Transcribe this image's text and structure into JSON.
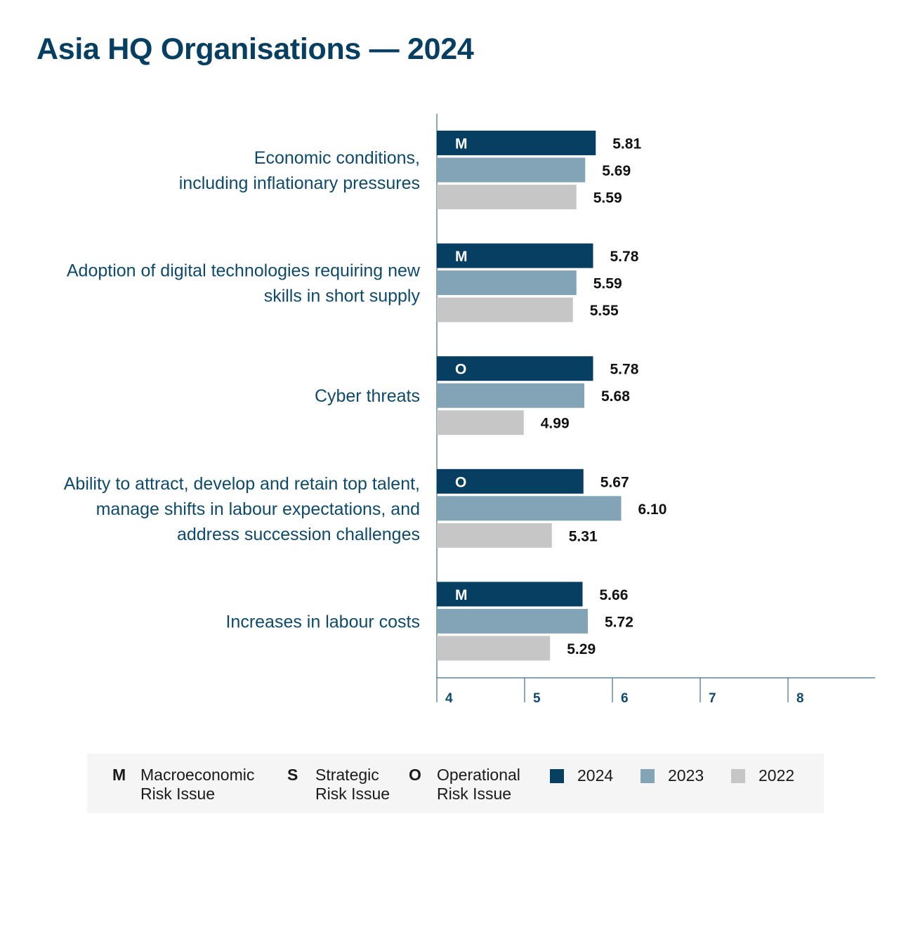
{
  "title": "Asia HQ Organisations — 2024",
  "colors": {
    "2024": "#073f63",
    "2023": "#83a3b6",
    "2022": "#c6c6c6",
    "label": "#0d4a6b",
    "axis": "#3f6f88"
  },
  "chart_data": {
    "type": "bar",
    "orientation": "horizontal",
    "title": "Asia HQ Organisations — 2024",
    "xlim": [
      4,
      9
    ],
    "xticks": [
      4,
      5,
      6,
      7,
      8
    ],
    "categories": [
      [
        "Economic conditions,",
        "including inflationary pressures"
      ],
      [
        "Adoption of digital technologies requiring new",
        "skills in short supply"
      ],
      [
        "Cyber threats"
      ],
      [
        "Ability to attract, develop and retain top talent,",
        "manage shifts in labour expectations, and",
        "address succession challenges"
      ],
      [
        "Increases in labour costs"
      ]
    ],
    "risk_codes": [
      "M",
      "M",
      "O",
      "O",
      "M"
    ],
    "series": [
      {
        "name": "2024",
        "values": [
          5.81,
          5.78,
          5.78,
          5.67,
          5.66
        ],
        "labels": [
          "5.81",
          "5.78",
          "5.78",
          "5.67",
          "5.66"
        ]
      },
      {
        "name": "2023",
        "values": [
          5.69,
          5.59,
          5.68,
          6.1,
          5.72
        ],
        "labels": [
          "5.69",
          "5.59",
          "5.68",
          "6.10",
          "5.72"
        ]
      },
      {
        "name": "2022",
        "values": [
          5.59,
          5.55,
          4.99,
          5.31,
          5.29
        ],
        "labels": [
          "5.59",
          "5.55",
          "4.99",
          "5.31",
          "5.29"
        ]
      }
    ],
    "grid": false,
    "legend_position": "bottom"
  },
  "legend": {
    "risk_types": [
      {
        "code": "M",
        "line1": "Macroeconomic",
        "line2": "Risk Issue"
      },
      {
        "code": "S",
        "line1": "Strategic",
        "line2": "Risk Issue"
      },
      {
        "code": "O",
        "line1": "Operational",
        "line2": "Risk Issue"
      }
    ],
    "years": [
      "2024",
      "2023",
      "2022"
    ]
  }
}
